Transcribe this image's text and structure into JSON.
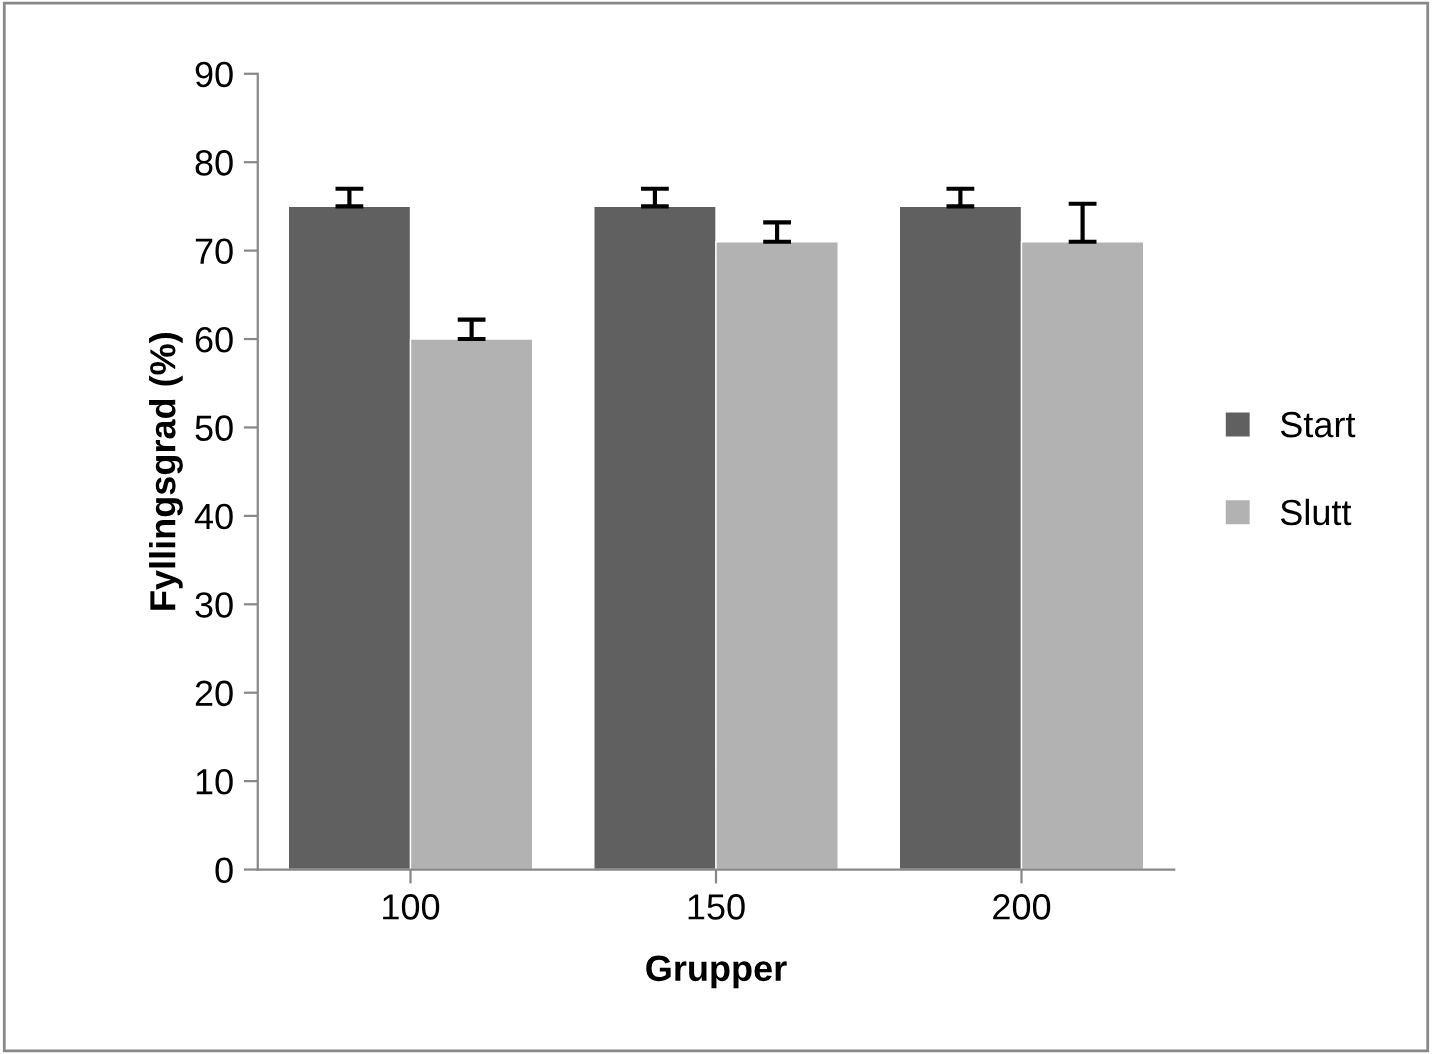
{
  "chart_data": {
    "type": "bar",
    "xlabel": "Grupper",
    "ylabel": "Fyllingsgrad (%)",
    "categories": [
      "100",
      "150",
      "200"
    ],
    "series": [
      {
        "name": "Start",
        "color": "#606060",
        "values": [
          75,
          75,
          75
        ],
        "errors": [
          [
            75,
            77
          ],
          [
            75,
            77
          ],
          [
            75,
            77
          ]
        ]
      },
      {
        "name": "Slutt",
        "color": "#b2b2b2",
        "values": [
          60,
          71,
          71
        ],
        "errors": [
          [
            60,
            62.2
          ],
          [
            71,
            73.2
          ],
          [
            71,
            75.3
          ]
        ]
      }
    ],
    "ylim": [
      0,
      90
    ],
    "yticks": [
      0,
      10,
      20,
      30,
      40,
      50,
      60,
      70,
      80,
      90
    ],
    "grid": false,
    "legend": "right"
  }
}
